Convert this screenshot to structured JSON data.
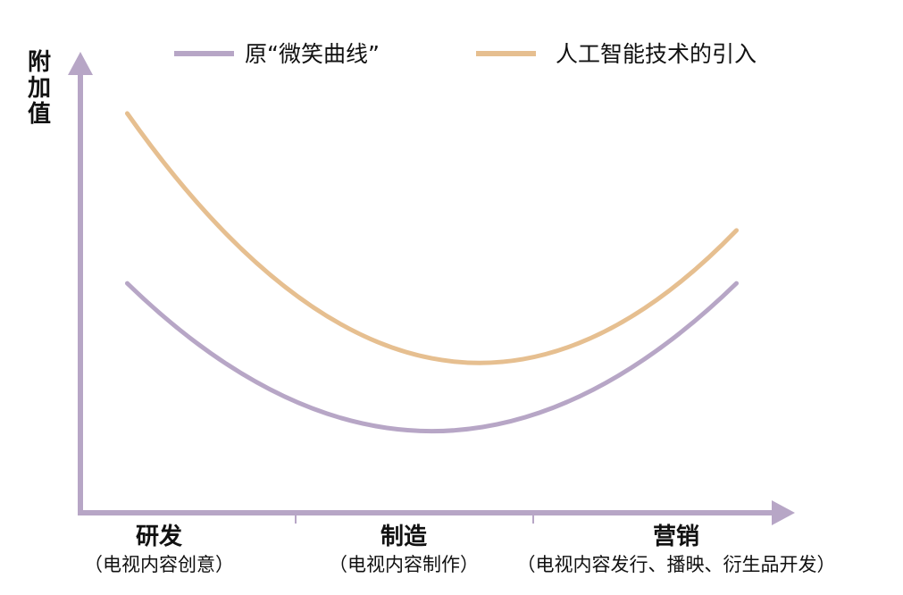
{
  "chart_data": {
    "type": "line",
    "ylabel": "附加值",
    "categories": [
      {
        "label": "研发",
        "sublabel": "（电视内容创意）"
      },
      {
        "label": "制造",
        "sublabel": "（电视内容制作）"
      },
      {
        "label": "营销",
        "sublabel": "（电视内容发行、播映、衍生品开发）"
      }
    ],
    "x_range": [
      0,
      3
    ],
    "y_range": [
      0,
      10
    ],
    "grid": false,
    "legend_position": "top",
    "series": [
      {
        "name": "原“微笑曲线”",
        "color": "#b7a6c6",
        "points": [
          [
            0.2,
            5.2
          ],
          [
            1.5,
            1.85
          ],
          [
            2.8,
            5.2
          ]
        ]
      },
      {
        "name": "人工智能技术的引入",
        "color": "#e6bf90",
        "points": [
          [
            0.2,
            9.05
          ],
          [
            1.5,
            3.5
          ],
          [
            2.8,
            6.4
          ]
        ]
      }
    ]
  },
  "colors": {
    "axis": "#b7a6c6",
    "text": "#111111"
  }
}
